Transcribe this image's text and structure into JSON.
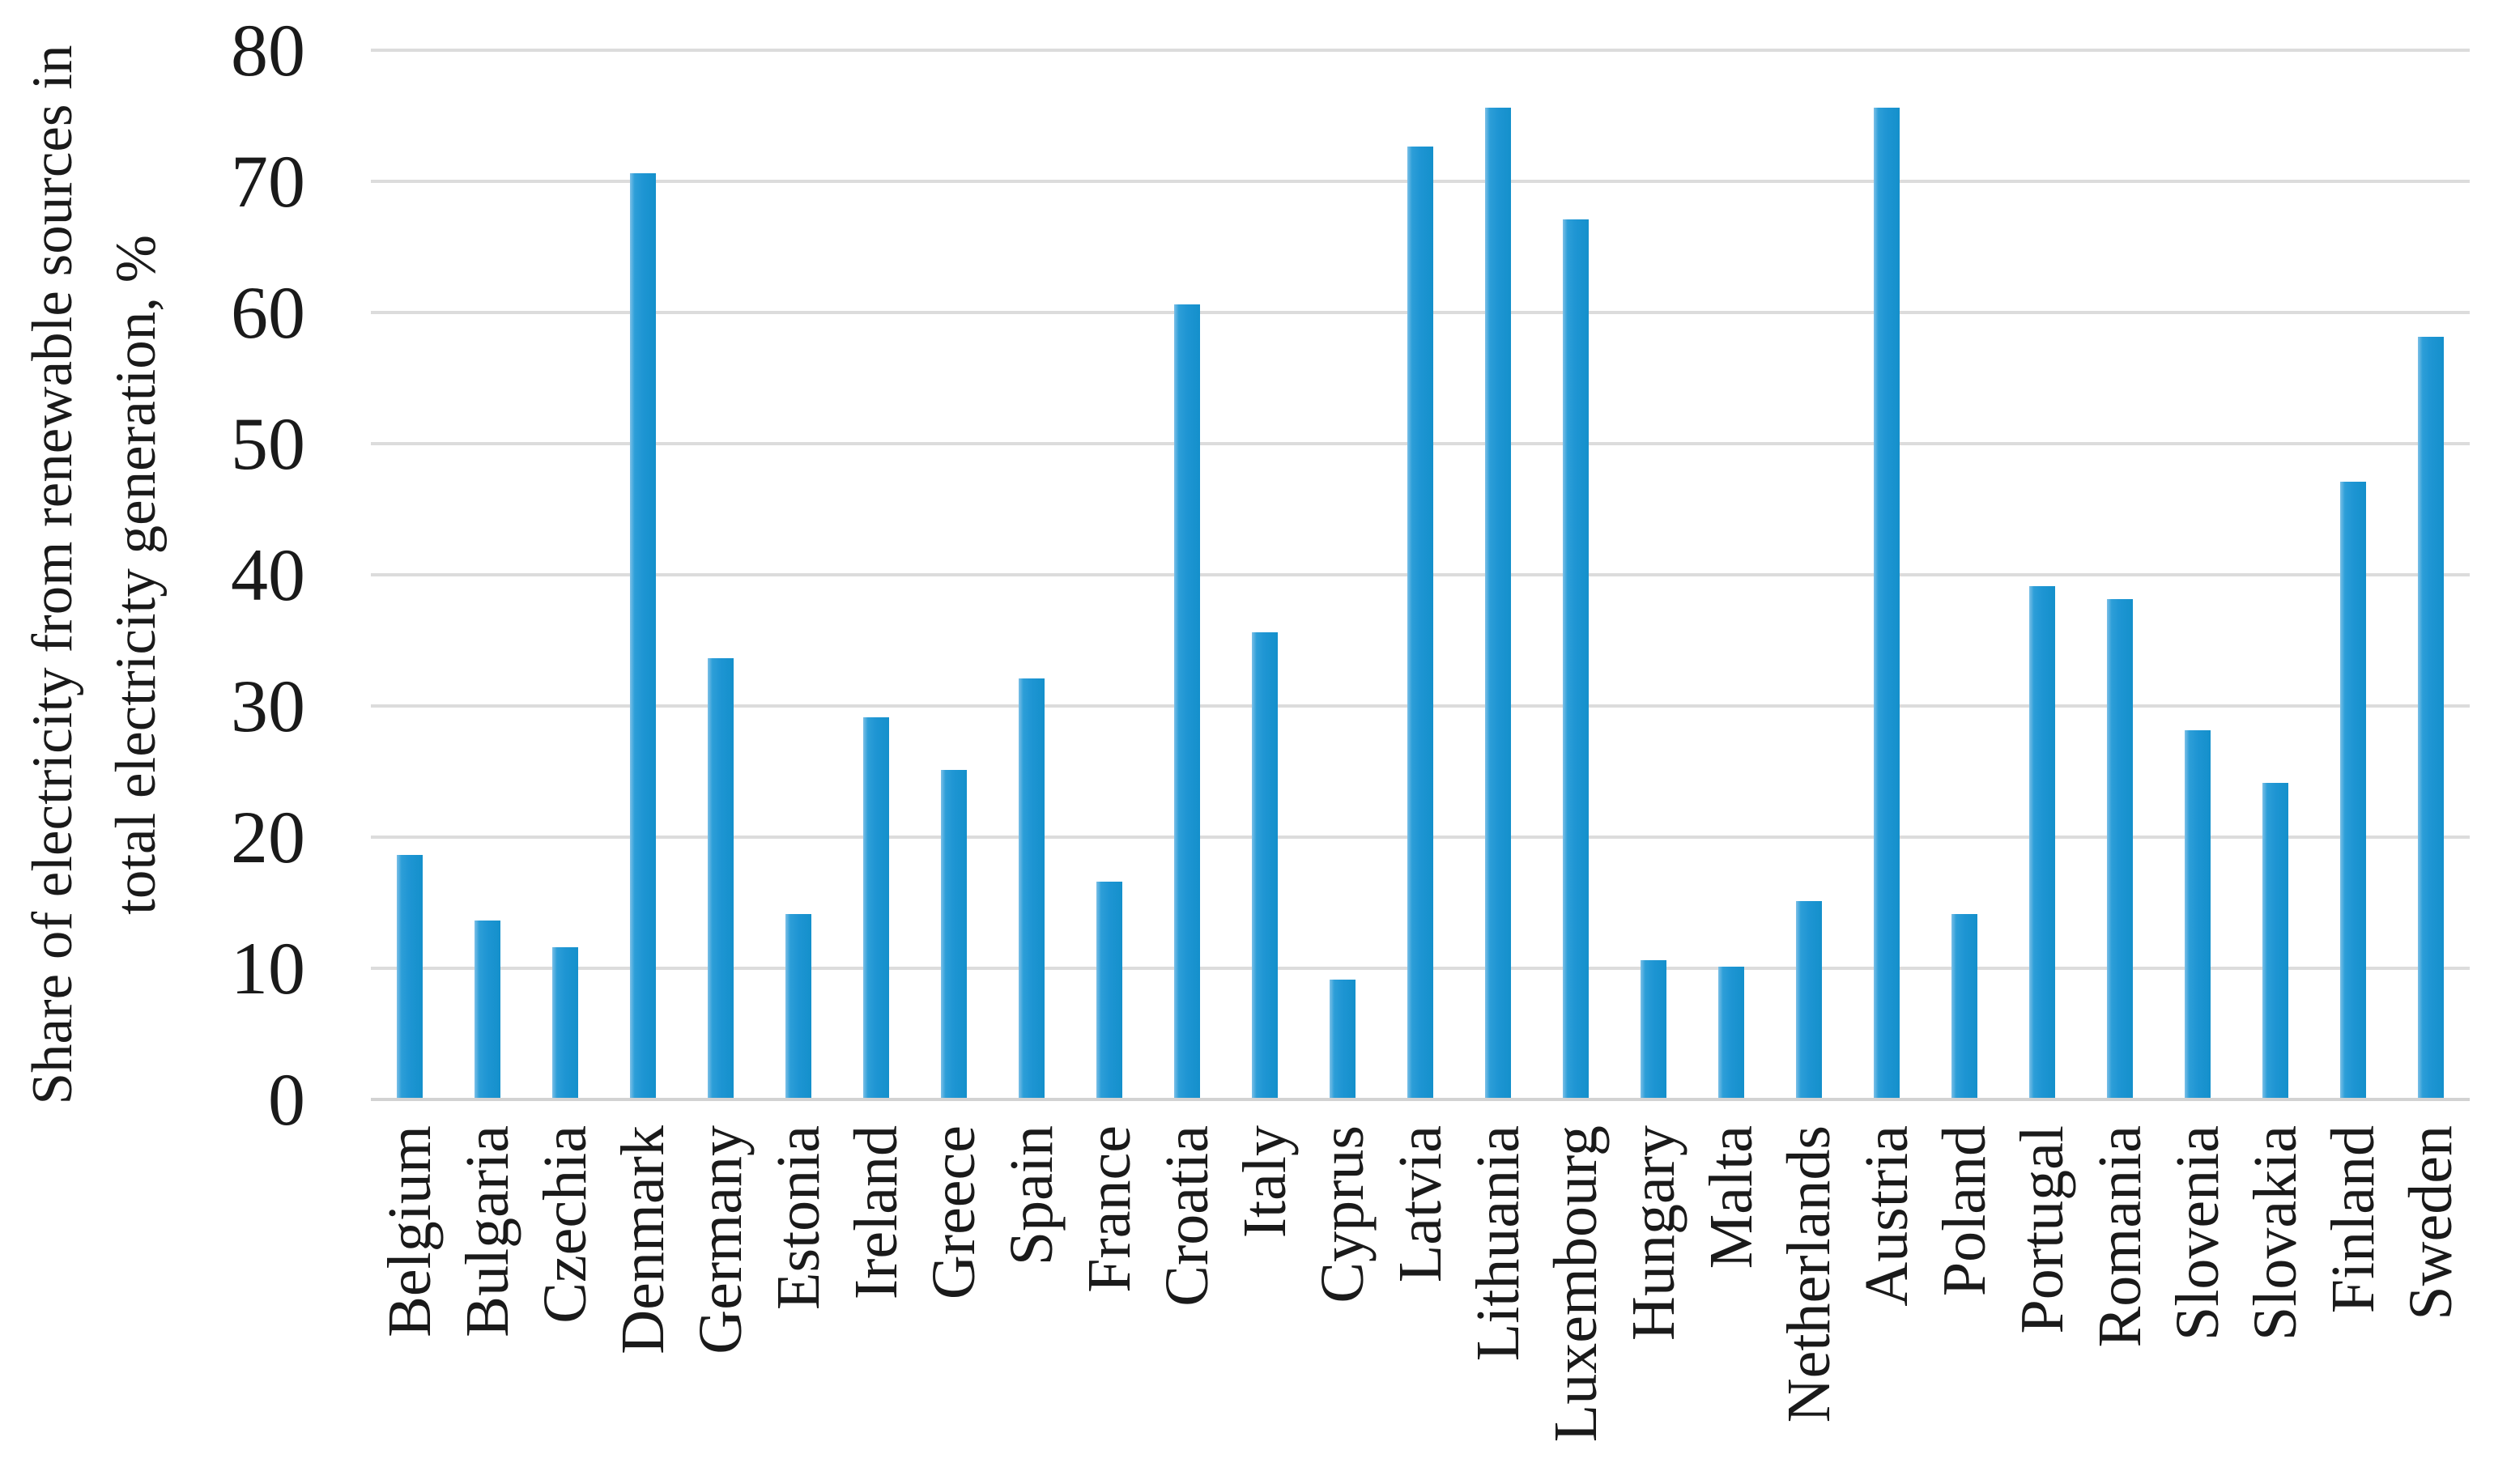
{
  "chart_data": {
    "type": "bar",
    "title": "",
    "ylabel_lines": [
      "Share of electricity from renewable sources in",
      "total electricity generation, %"
    ],
    "categories": [
      "Belgium",
      "Bulgaria",
      "Czechia",
      "Denmark",
      "Germany",
      "Estonia",
      "Ireland",
      "Greece",
      "Spain",
      "France",
      "Croatia",
      "Italy",
      "Cyprus",
      "Latvia",
      "Lithuania",
      "Luxembourg",
      "Hungary",
      "Malta",
      "Netherlands",
      "Austria",
      "Poland",
      "Portugal",
      "Romania",
      "Slovenia",
      "Slovakia",
      "Finland",
      "Sweden"
    ],
    "values": [
      18.5,
      13.5,
      11.5,
      70.5,
      33.5,
      14.0,
      29.0,
      25.0,
      32.0,
      16.5,
      60.5,
      35.5,
      9.0,
      72.5,
      75.5,
      67.0,
      10.5,
      10.0,
      15.0,
      75.5,
      14.0,
      39.0,
      38.0,
      28.0,
      24.0,
      47.0,
      58.0
    ],
    "xlabel": "",
    "ylim": [
      0,
      80
    ],
    "yticks": [
      0,
      10,
      20,
      30,
      40,
      50,
      60,
      70,
      80
    ],
    "grid": "horizontal",
    "legend_position": "none",
    "colors": {
      "bar": "#1e95d3",
      "gridline": "#dcdcdc",
      "axis_line": "#d2d2d2",
      "text": "#1a1a1a",
      "background": "#ffffff"
    }
  }
}
